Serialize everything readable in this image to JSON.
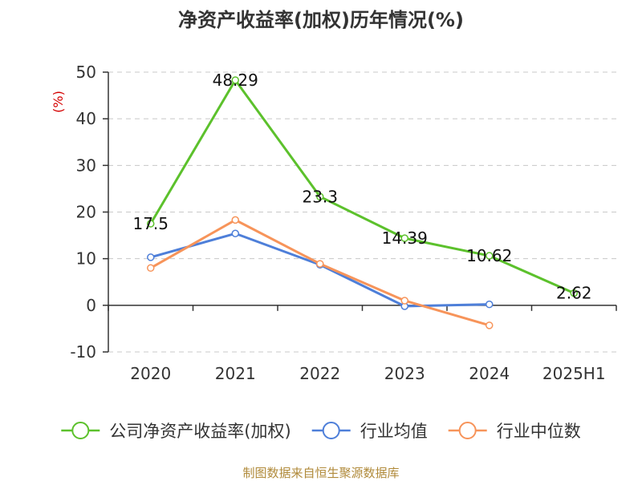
{
  "chart_data": {
    "type": "line",
    "title": "净资产收益率(加权)历年情况(%)",
    "ylabel": "(%)",
    "xlabel": "",
    "categories": [
      "2020",
      "2021",
      "2022",
      "2023",
      "2024",
      "2025H1"
    ],
    "ylim": [
      -10,
      50
    ],
    "yticks": [
      -10,
      0,
      10,
      20,
      30,
      40,
      50
    ],
    "grid": true,
    "legend_position": "bottom",
    "series": [
      {
        "name": "公司净资产收益率(加权)",
        "color": "#5cc12c",
        "values": [
          17.5,
          48.29,
          23.3,
          14.39,
          10.62,
          2.62
        ],
        "labels": [
          "17.5",
          "48.29",
          "23.3",
          "14.39",
          "10.62",
          "2.62"
        ]
      },
      {
        "name": "行业均值",
        "color": "#4e7fd9",
        "values": [
          10.3,
          15.4,
          8.7,
          -0.2,
          0.2,
          null
        ]
      },
      {
        "name": "行业中位数",
        "color": "#f7945a",
        "values": [
          8.0,
          18.3,
          8.9,
          1.0,
          -4.3,
          null
        ]
      }
    ]
  },
  "source": "制图数据来自恒生聚源数据库"
}
